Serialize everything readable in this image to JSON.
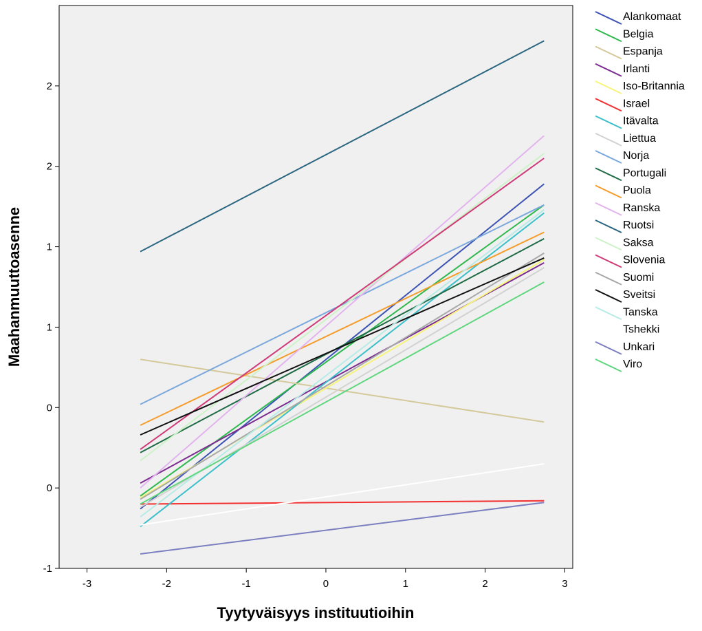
{
  "chart_data": {
    "type": "line",
    "xlabel": "Tyytyväisyys instituutioihin",
    "ylabel": "Maahanmuuttoasenne",
    "xlim": [
      -3.35,
      3.1
    ],
    "ylim": [
      -1.0,
      2.5
    ],
    "x_ticks": [
      {
        "value": -3,
        "label": "-3"
      },
      {
        "value": -2,
        "label": "-2"
      },
      {
        "value": -1,
        "label": "-1"
      },
      {
        "value": 0,
        "label": "0"
      },
      {
        "value": 1,
        "label": "1"
      },
      {
        "value": 2,
        "label": "2"
      },
      {
        "value": 3,
        "label": "3"
      }
    ],
    "y_ticks": [
      {
        "value": -1.0,
        "label": "-1"
      },
      {
        "value": -0.5,
        "label": "0"
      },
      {
        "value": 0.0,
        "label": "0"
      },
      {
        "value": 0.5,
        "label": "1"
      },
      {
        "value": 1.0,
        "label": "1"
      },
      {
        "value": 1.5,
        "label": "2"
      },
      {
        "value": 2.0,
        "label": "2"
      }
    ],
    "grid": false,
    "legend_position": "right",
    "plot_background": "#f0f0f0",
    "series": [
      {
        "name": "Alankomaat",
        "color": "#3b52b4",
        "x": [
          -2.33,
          2.74
        ],
        "y": [
          -0.63,
          1.39
        ]
      },
      {
        "name": "Belgia",
        "color": "#2eb84d",
        "x": [
          -2.33,
          2.74
        ],
        "y": [
          -0.55,
          1.26
        ]
      },
      {
        "name": "Espanja",
        "color": "#d4c99a",
        "x": [
          -2.33,
          2.74
        ],
        "y": [
          0.3,
          -0.09
        ]
      },
      {
        "name": "Irlanti",
        "color": "#7b2a8f",
        "x": [
          -2.33,
          2.74
        ],
        "y": [
          -0.47,
          0.9
        ]
      },
      {
        "name": "Iso-Britannia",
        "color": "#f7f47a",
        "x": [
          -2.33,
          2.74
        ],
        "y": [
          -0.56,
          0.92
        ]
      },
      {
        "name": "Israel",
        "color": "#f23030",
        "x": [
          -2.33,
          2.74
        ],
        "y": [
          -0.6,
          -0.58
        ]
      },
      {
        "name": "Itävalta",
        "color": "#3bbfca",
        "x": [
          -2.33,
          2.74
        ],
        "y": [
          -0.74,
          1.21
        ]
      },
      {
        "name": "Liettua",
        "color": "#d2d2d2",
        "x": [
          -2.33,
          2.74
        ],
        "y": [
          -0.62,
          0.87
        ]
      },
      {
        "name": "Norja",
        "color": "#7aa8dd",
        "x": [
          -2.33,
          2.74
        ],
        "y": [
          0.02,
          1.26
        ]
      },
      {
        "name": "Portugali",
        "color": "#1e6b45",
        "x": [
          -2.33,
          2.74
        ],
        "y": [
          -0.28,
          1.05
        ]
      },
      {
        "name": "Puola",
        "color": "#f59c2a",
        "x": [
          -2.33,
          2.74
        ],
        "y": [
          -0.11,
          1.09
        ]
      },
      {
        "name": "Ranska",
        "color": "#e2b3ee",
        "x": [
          -2.33,
          2.74
        ],
        "y": [
          -0.5,
          1.69
        ]
      },
      {
        "name": "Ruotsi",
        "color": "#2b6680",
        "x": [
          -2.33,
          2.74
        ],
        "y": [
          0.97,
          2.28
        ]
      },
      {
        "name": "Saksa",
        "color": "#cdf2c8",
        "x": [
          -2.33,
          2.74
        ],
        "y": [
          -0.33,
          1.58
        ]
      },
      {
        "name": "Slovenia",
        "color": "#cf3a78",
        "x": [
          -2.33,
          2.74
        ],
        "y": [
          -0.26,
          1.55
        ]
      },
      {
        "name": "Suomi",
        "color": "#a8a8a8",
        "x": [
          -2.33,
          2.74
        ],
        "y": [
          -0.57,
          0.96
        ]
      },
      {
        "name": "Sveitsi",
        "color": "#111111",
        "x": [
          -2.33,
          2.74
        ],
        "y": [
          -0.17,
          0.93
        ]
      },
      {
        "name": "Tanska",
        "color": "#b7ebe5",
        "x": [
          -2.33,
          2.74
        ],
        "y": [
          -0.68,
          1.23
        ]
      },
      {
        "name": "Tshekki",
        "color": "#ffffff",
        "x": [
          -2.33,
          2.74
        ],
        "y": [
          -0.73,
          -0.35
        ]
      },
      {
        "name": "Unkari",
        "color": "#7b7fbf",
        "x": [
          -2.33,
          2.74
        ],
        "y": [
          -0.91,
          -0.59
        ]
      },
      {
        "name": "Viro",
        "color": "#5fd67d",
        "x": [
          -2.33,
          2.74
        ],
        "y": [
          -0.6,
          0.78
        ]
      }
    ]
  }
}
